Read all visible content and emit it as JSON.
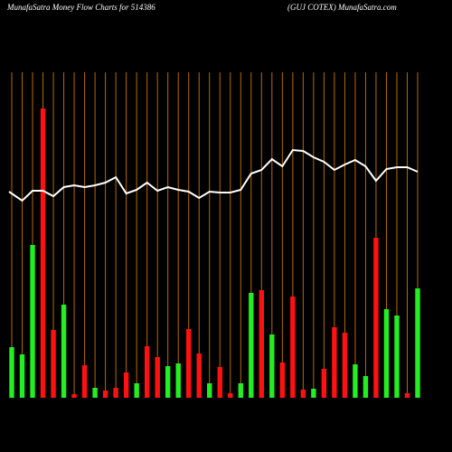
{
  "chart_data": {
    "type": "bar",
    "title": "MunafaSatra  Money Flow  Charts for 514386",
    "subtitle": "(GUJ COTEX) MunafaSatra.com",
    "categories": [
      null,
      null,
      null,
      null,
      null,
      null,
      null,
      null,
      null,
      null,
      null,
      null,
      null,
      null,
      null,
      null,
      null,
      null,
      null,
      null,
      null,
      null,
      null,
      null,
      null,
      null,
      null,
      null,
      null,
      null,
      null,
      null,
      null,
      null,
      null,
      null,
      null,
      null,
      null,
      null
    ],
    "ylim": [
      0,
      380
    ],
    "grid": true,
    "grid_color": "#b86a00",
    "series": [
      {
        "values": [
          56,
          48,
          169,
          320,
          75,
          103,
          4,
          36,
          11,
          8,
          11,
          28,
          16,
          57,
          45,
          35,
          38,
          76,
          49,
          16,
          34,
          5,
          16,
          116,
          119,
          70,
          39,
          112,
          9,
          10,
          32,
          78,
          72,
          37,
          24,
          177,
          98,
          91,
          5,
          121
        ],
        "colors": [
          "#22ee22",
          "#22ee22",
          "#22ee22",
          "#ff1111",
          "#ff1111",
          "#22ee22",
          "#ff1111",
          "#ff1111",
          "#22ee22",
          "#ff1111",
          "#ff1111",
          "#ff1111",
          "#22ee22",
          "#ff1111",
          "#ff1111",
          "#22ee22",
          "#22ee22",
          "#ff1111",
          "#ff1111",
          "#22ee22",
          "#ff1111",
          "#ff1111",
          "#22ee22",
          "#22ee22",
          "#ff1111",
          "#22ee22",
          "#ff1111",
          "#ff1111",
          "#ff1111",
          "#22ee22",
          "#ff1111",
          "#ff1111",
          "#ff1111",
          "#22ee22",
          "#22ee22",
          "#ff1111",
          "#22ee22",
          "#22ee22",
          "#ff1111",
          "#22ee22"
        ]
      },
      {
        "type": "line",
        "color": "#ffffff",
        "values": [
          228,
          218,
          229,
          229,
          223,
          233,
          235,
          233,
          235,
          238,
          244,
          226,
          230,
          238,
          229,
          233,
          230,
          228,
          221,
          228,
          227,
          227,
          230,
          248,
          252,
          264,
          256,
          274,
          273,
          266,
          261,
          252,
          258,
          263,
          256,
          240,
          253,
          255,
          255,
          250
        ]
      }
    ]
  }
}
